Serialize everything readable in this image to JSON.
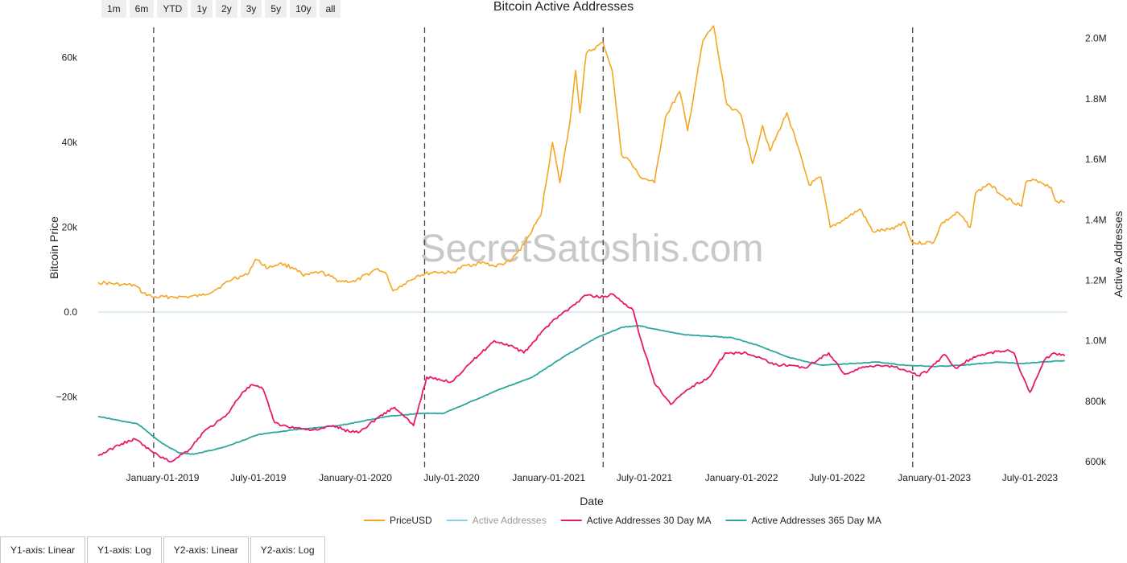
{
  "range_selector": {
    "buttons": [
      "1m",
      "6m",
      "YTD",
      "1y",
      "2y",
      "3y",
      "5y",
      "10y",
      "all"
    ]
  },
  "axis_toggles": [
    "Y1-axis: Linear",
    "Y1-axis: Log",
    "Y2-axis: Linear",
    "Y2-axis: Log"
  ],
  "watermark": "SecretSatoshis.com",
  "colors": {
    "price": "#f5a623",
    "active": "#90c8ee",
    "ma30": "#e8196b",
    "ma365": "#2aa89b",
    "event_lines": "#444444"
  },
  "chart_data": {
    "type": "line",
    "title": "Bitcoin Active Addresses",
    "xlabel": "Date",
    "ylabel": "Bitcoin Price",
    "y2label": "Active Addresses",
    "xlim": [
      "2018-09-01",
      "2023-09-10"
    ],
    "ylim": [
      -36000,
      66000
    ],
    "y2lim": [
      590000,
      2020000
    ],
    "x_ticks": [
      "January-01-2019",
      "July-01-2019",
      "January-01-2020",
      "July-01-2020",
      "January-01-2021",
      "July-01-2021",
      "January-01-2022",
      "July-01-2022",
      "January-01-2023",
      "July-01-2023"
    ],
    "x_tick_dates": [
      "2019-01-01",
      "2019-07-01",
      "2020-01-01",
      "2020-07-01",
      "2021-01-01",
      "2021-07-01",
      "2022-01-01",
      "2022-07-01",
      "2023-01-01",
      "2023-07-01"
    ],
    "y_ticks": [
      {
        "value": 60000,
        "label": "60k"
      },
      {
        "value": 40000,
        "label": "40k"
      },
      {
        "value": 20000,
        "label": "20k"
      },
      {
        "value": 0,
        "label": "0.0"
      },
      {
        "value": -20000,
        "label": "−20k"
      }
    ],
    "y2_ticks": [
      {
        "value": 2000000,
        "label": "2.0M"
      },
      {
        "value": 1800000,
        "label": "1.8M"
      },
      {
        "value": 1600000,
        "label": "1.6M"
      },
      {
        "value": 1400000,
        "label": "1.4M"
      },
      {
        "value": 1200000,
        "label": "1.2M"
      },
      {
        "value": 1000000,
        "label": "1.0M"
      },
      {
        "value": 800000,
        "label": "800k"
      },
      {
        "value": 600000,
        "label": "600k"
      }
    ],
    "zero_line": 0,
    "event_lines": [
      "2018-12-15",
      "2020-05-11",
      "2021-04-14",
      "2022-11-21"
    ],
    "legend_position": "bottom-center",
    "series": [
      {
        "name": "PriceUSD",
        "axis": "y",
        "x": [
          "2018-09-01",
          "2018-10-15",
          "2018-11-10",
          "2018-11-25",
          "2018-12-15",
          "2019-01-15",
          "2019-02-15",
          "2019-03-15",
          "2019-04-10",
          "2019-05-15",
          "2019-06-10",
          "2019-06-26",
          "2019-07-20",
          "2019-08-10",
          "2019-09-10",
          "2019-09-25",
          "2019-10-26",
          "2019-12-01",
          "2019-12-31",
          "2020-02-12",
          "2020-03-01",
          "2020-03-12",
          "2020-04-01",
          "2020-04-29",
          "2020-06-01",
          "2020-07-01",
          "2020-07-27",
          "2020-09-01",
          "2020-09-20",
          "2020-10-20",
          "2020-11-15",
          "2020-12-01",
          "2020-12-17",
          "2021-01-08",
          "2021-01-22",
          "2021-02-10",
          "2021-02-21",
          "2021-03-01",
          "2021-03-13",
          "2021-04-14",
          "2021-05-01",
          "2021-05-19",
          "2021-06-01",
          "2021-06-22",
          "2021-07-20",
          "2021-08-10",
          "2021-09-06",
          "2021-09-21",
          "2021-10-20",
          "2021-11-09",
          "2021-12-04",
          "2021-12-31",
          "2022-01-22",
          "2022-02-10",
          "2022-02-24",
          "2022-03-28",
          "2022-04-15",
          "2022-05-09",
          "2022-05-31",
          "2022-06-18",
          "2022-07-10",
          "2022-08-14",
          "2022-09-06",
          "2022-10-10",
          "2022-11-05",
          "2022-11-21",
          "2022-12-31",
          "2023-01-14",
          "2023-02-15",
          "2023-03-10",
          "2023-03-20",
          "2023-04-14",
          "2023-05-10",
          "2023-06-15",
          "2023-06-23",
          "2023-07-13",
          "2023-08-10",
          "2023-08-18",
          "2023-09-05"
        ],
        "values": [
          7000,
          6500,
          6300,
          4500,
          3500,
          3600,
          3600,
          3900,
          5200,
          8000,
          8800,
          12500,
          10400,
          11500,
          10300,
          8500,
          9500,
          7400,
          7200,
          10300,
          8700,
          5000,
          6600,
          8700,
          9500,
          9200,
          11000,
          11700,
          10800,
          11900,
          16000,
          19400,
          22800,
          40000,
          30500,
          44800,
          57000,
          47000,
          61000,
          63500,
          57000,
          37000,
          36000,
          32000,
          30500,
          46000,
          52000,
          42800,
          64000,
          67500,
          49000,
          46500,
          35000,
          44000,
          38000,
          47000,
          40000,
          30000,
          31800,
          20000,
          21500,
          24300,
          19000,
          19500,
          21300,
          16200,
          16500,
          20800,
          23500,
          20000,
          28000,
          30300,
          27500,
          25000,
          30500,
          31200,
          29400,
          26300,
          25800
        ]
      },
      {
        "name": "Active Addresses",
        "axis": "y2",
        "visible": false,
        "x": [],
        "values": []
      },
      {
        "name": "Active Addresses 30 Day MA",
        "axis": "y2",
        "x": [
          "2018-09-01",
          "2018-10-15",
          "2018-11-10",
          "2018-12-15",
          "2019-01-15",
          "2019-02-20",
          "2019-03-20",
          "2019-04-30",
          "2019-06-01",
          "2019-06-20",
          "2019-07-10",
          "2019-08-01",
          "2019-08-15",
          "2019-09-20",
          "2019-10-20",
          "2019-11-20",
          "2019-12-20",
          "2020-01-10",
          "2020-02-15",
          "2020-03-15",
          "2020-04-20",
          "2020-05-15",
          "2020-06-10",
          "2020-07-01",
          "2020-08-01",
          "2020-08-20",
          "2020-09-20",
          "2020-10-20",
          "2020-11-15",
          "2020-12-15",
          "2021-01-10",
          "2021-02-20",
          "2021-03-10",
          "2021-04-15",
          "2021-05-01",
          "2021-05-20",
          "2021-06-10",
          "2021-06-20",
          "2021-07-20",
          "2021-08-20",
          "2021-09-30",
          "2021-11-01",
          "2021-12-01",
          "2022-01-10",
          "2022-02-10",
          "2022-03-10",
          "2022-04-01",
          "2022-05-01",
          "2022-06-15",
          "2022-07-15",
          "2022-08-15",
          "2022-09-15",
          "2022-10-15",
          "2022-11-15",
          "2022-12-01",
          "2022-12-20",
          "2023-01-20",
          "2023-02-10",
          "2023-03-10",
          "2023-04-15",
          "2023-05-10",
          "2023-05-20",
          "2023-06-01",
          "2023-06-15",
          "2023-07-01",
          "2023-07-30",
          "2023-08-15",
          "2023-09-05"
        ],
        "values": [
          620000,
          660000,
          675000,
          630000,
          600000,
          640000,
          700000,
          750000,
          830000,
          855000,
          840000,
          730000,
          720000,
          710000,
          705000,
          720000,
          700000,
          700000,
          750000,
          780000,
          720000,
          880000,
          870000,
          865000,
          920000,
          950000,
          1000000,
          985000,
          960000,
          1020000,
          1070000,
          1120000,
          1150000,
          1145000,
          1155000,
          1130000,
          1100000,
          1030000,
          860000,
          790000,
          850000,
          880000,
          960000,
          960000,
          940000,
          920000,
          920000,
          910000,
          960000,
          890000,
          910000,
          920000,
          915000,
          900000,
          885000,
          900000,
          955000,
          910000,
          940000,
          960000,
          965000,
          970000,
          960000,
          890000,
          830000,
          940000,
          960000,
          950000
        ]
      },
      {
        "name": "Active Addresses 365 Day MA",
        "axis": "y2",
        "x": [
          "2018-09-01",
          "2018-11-15",
          "2019-01-01",
          "2019-02-01",
          "2019-03-01",
          "2019-05-01",
          "2019-07-01",
          "2019-09-01",
          "2019-12-01",
          "2020-03-01",
          "2020-05-01",
          "2020-06-15",
          "2020-08-01",
          "2020-10-01",
          "2020-12-01",
          "2021-02-01",
          "2021-04-01",
          "2021-05-20",
          "2021-06-20",
          "2021-08-01",
          "2021-09-15",
          "2021-11-01",
          "2021-12-15",
          "2022-02-01",
          "2022-04-01",
          "2022-06-01",
          "2022-08-01",
          "2022-09-15",
          "2022-11-01",
          "2023-01-01",
          "2023-03-01",
          "2023-05-01",
          "2023-06-15",
          "2023-09-05"
        ],
        "values": [
          750000,
          725000,
          660000,
          630000,
          625000,
          650000,
          690000,
          705000,
          720000,
          750000,
          760000,
          760000,
          795000,
          840000,
          880000,
          950000,
          1010000,
          1045000,
          1050000,
          1035000,
          1020000,
          1015000,
          1010000,
          985000,
          945000,
          920000,
          925000,
          930000,
          920000,
          915000,
          920000,
          930000,
          925000,
          935000
        ]
      }
    ]
  }
}
